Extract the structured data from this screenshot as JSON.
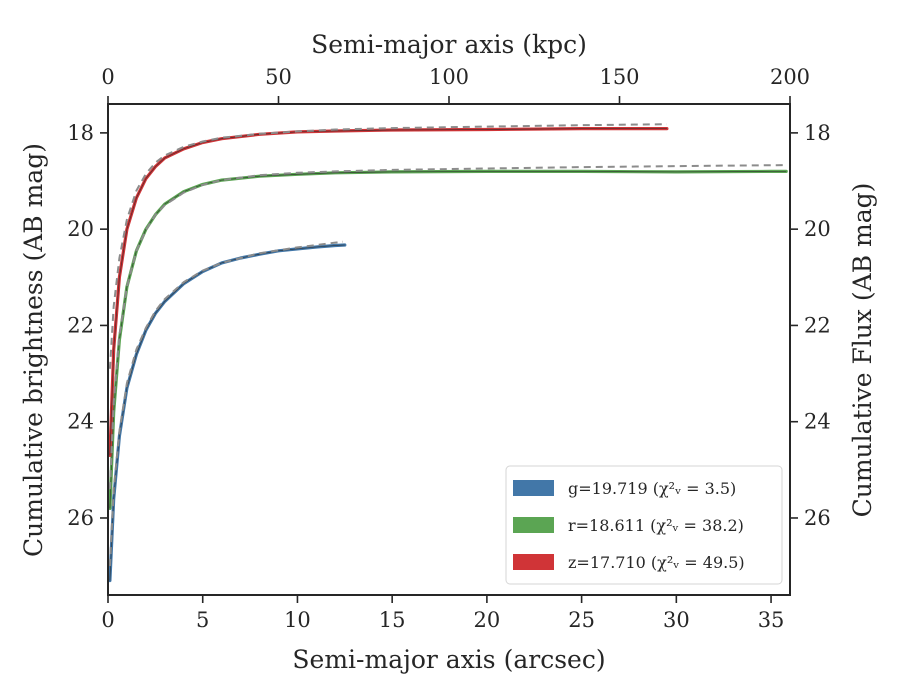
{
  "chart_data": {
    "type": "line",
    "xlabel_bottom": "Semi-major axis (arcsec)",
    "xlabel_top": "Semi-major axis (kpc)",
    "ylabel_left": "Cumulative brightness (AB mag)",
    "ylabel_right": "Cumulative Flux (AB mag)",
    "xlim": [
      0,
      36
    ],
    "ylim": [
      27.6,
      17.4
    ],
    "top_xlim": [
      0,
      200
    ],
    "x_ticks": [
      0,
      5,
      10,
      15,
      20,
      25,
      30,
      35
    ],
    "x_tick_labels": [
      "0",
      "5",
      "10",
      "15",
      "20",
      "25",
      "30",
      "35"
    ],
    "top_ticks": [
      0,
      50,
      100,
      150,
      200
    ],
    "top_tick_labels": [
      "0",
      "50",
      "100",
      "150",
      "200"
    ],
    "y_ticks": [
      18,
      20,
      22,
      24,
      26
    ],
    "y_tick_labels": [
      "18",
      "20",
      "22",
      "24",
      "26"
    ],
    "grid": false,
    "legend_position": "lower-right",
    "series": [
      {
        "name": "g=19.719",
        "chi_label": "(χ²ᵥ = 3.5)",
        "color": "#4277a8",
        "x": [
          0.1,
          0.3,
          0.6,
          1,
          1.5,
          2,
          2.5,
          3,
          4,
          5,
          6,
          7,
          8,
          9,
          10,
          11,
          12,
          12.5
        ],
        "y": [
          27.3,
          25.6,
          24.3,
          23.3,
          22.6,
          22.1,
          21.75,
          21.5,
          21.13,
          20.88,
          20.7,
          20.6,
          20.52,
          20.45,
          20.41,
          20.37,
          20.34,
          20.33
        ]
      },
      {
        "name": "r=18.611",
        "chi_label": "(χ²ᵥ = 38.2)",
        "color": "#5ba553",
        "x": [
          0.1,
          0.3,
          0.6,
          1,
          1.5,
          2,
          2.5,
          3,
          4,
          5,
          6,
          8,
          10,
          12,
          15,
          20,
          25,
          30,
          35,
          35.8
        ],
        "y": [
          25.8,
          23.8,
          22.3,
          21.2,
          20.45,
          20.0,
          19.7,
          19.48,
          19.22,
          19.07,
          18.98,
          18.9,
          18.86,
          18.83,
          18.81,
          18.8,
          18.8,
          18.81,
          18.8,
          18.8
        ]
      },
      {
        "name": "z=17.710",
        "chi_label": "(χ²ᵥ = 49.5)",
        "color": "#d03437",
        "x": [
          0.1,
          0.3,
          0.6,
          1,
          1.5,
          2,
          2.5,
          3,
          4,
          5,
          6,
          8,
          10,
          12,
          15,
          20,
          25,
          29.5
        ],
        "y": [
          24.7,
          22.5,
          21.0,
          20.0,
          19.35,
          18.95,
          18.7,
          18.52,
          18.33,
          18.2,
          18.12,
          18.03,
          17.98,
          17.96,
          17.94,
          17.93,
          17.91,
          17.91
        ]
      }
    ],
    "model_fits": [
      {
        "color": "#8c8c8c",
        "x": [
          0.1,
          0.3,
          0.6,
          1,
          1.5,
          2,
          2.5,
          3,
          4,
          5,
          6,
          8,
          10,
          12,
          12.4
        ],
        "y": [
          27.0,
          25.4,
          24.2,
          23.2,
          22.5,
          22.05,
          21.7,
          21.45,
          21.1,
          20.86,
          20.7,
          20.5,
          20.38,
          20.28,
          20.26
        ]
      },
      {
        "color": "#8c8c8c",
        "x": [
          0.1,
          0.3,
          0.6,
          1,
          1.5,
          2,
          2.5,
          3,
          4,
          5,
          6,
          8,
          10,
          12,
          15,
          20,
          25,
          30,
          35.8
        ],
        "y": [
          25.4,
          23.6,
          22.2,
          21.2,
          20.45,
          20.02,
          19.7,
          19.5,
          19.24,
          19.08,
          18.98,
          18.88,
          18.83,
          18.8,
          18.77,
          18.74,
          18.71,
          18.69,
          18.67
        ]
      },
      {
        "color": "#8c8c8c",
        "x": [
          0.1,
          0.3,
          0.6,
          1,
          1.5,
          2,
          2.5,
          3,
          4,
          5,
          6,
          8,
          10,
          12,
          15,
          20,
          25,
          29.5
        ],
        "y": [
          22.9,
          21.6,
          20.6,
          19.8,
          19.2,
          18.85,
          18.62,
          18.47,
          18.29,
          18.18,
          18.1,
          18.02,
          17.97,
          17.93,
          17.9,
          17.87,
          17.84,
          17.82
        ]
      }
    ]
  }
}
